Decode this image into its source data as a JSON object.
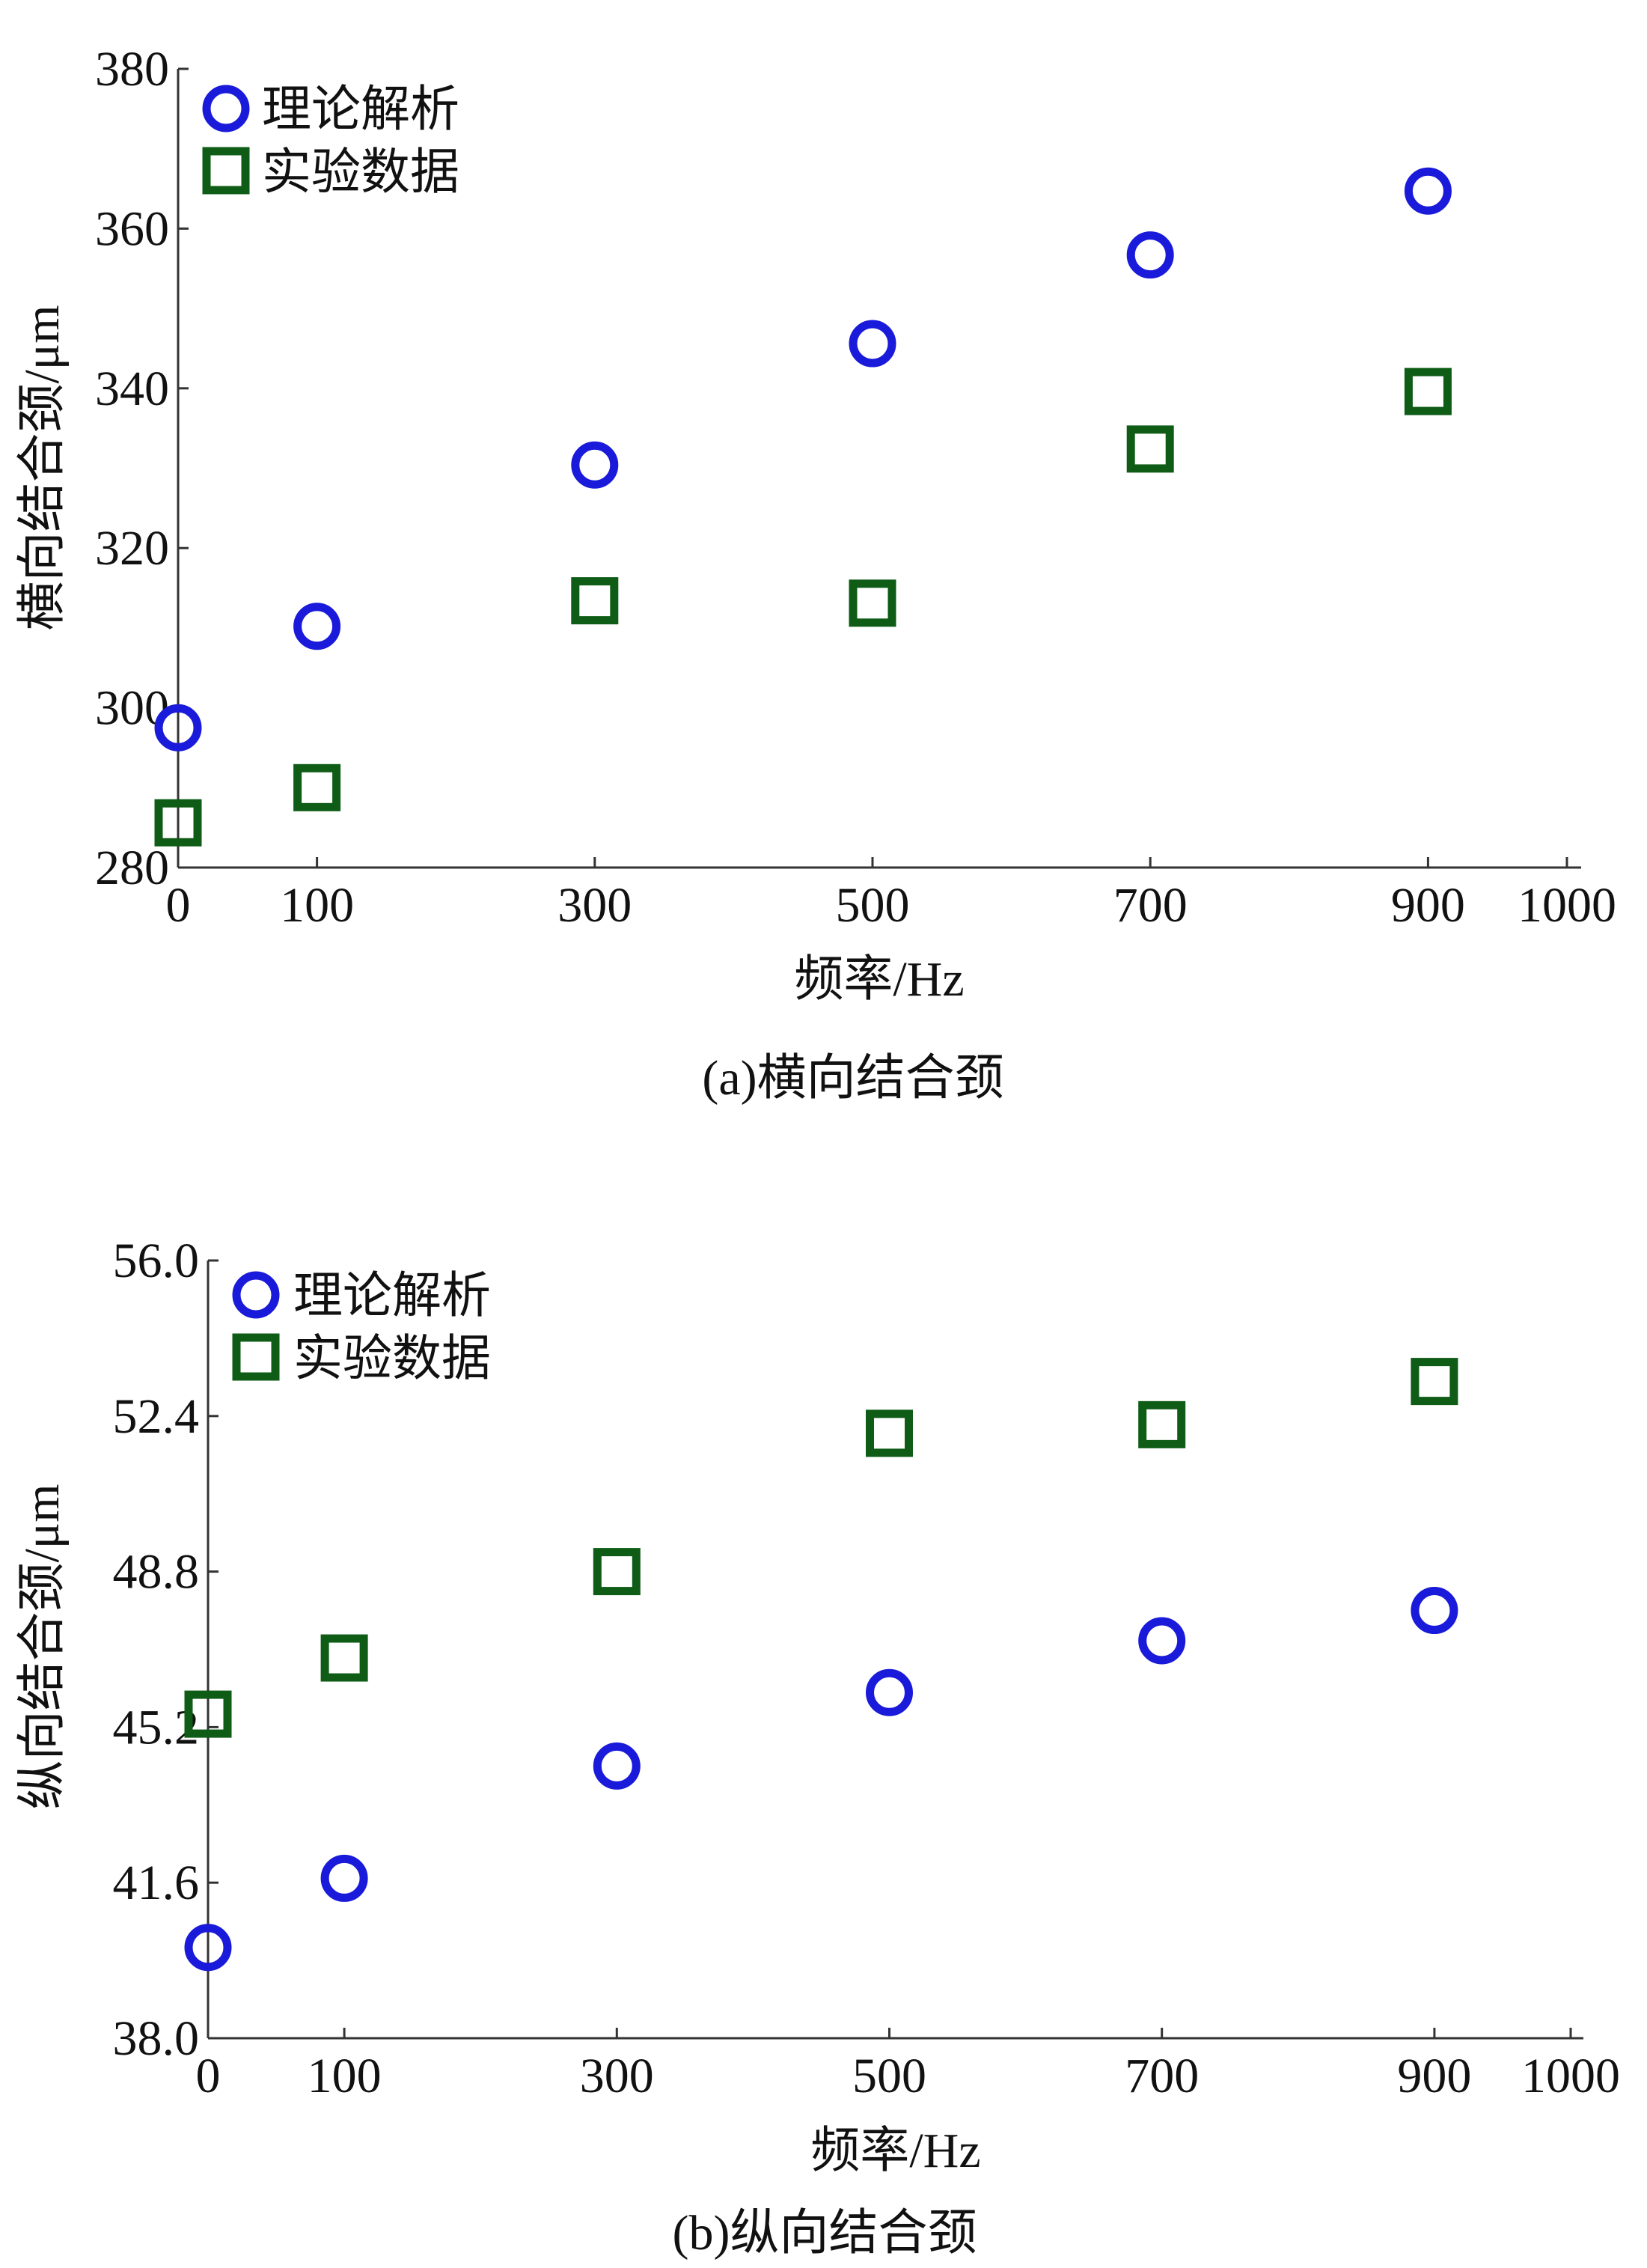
{
  "chart_data": [
    {
      "type": "scatter",
      "caption": "(a)横向结合颈",
      "xlabel": "频率/Hz",
      "ylabel": "横向结合颈/μm",
      "xlim": [
        0,
        1000
      ],
      "ylim": [
        280,
        380
      ],
      "xticks": [
        0,
        100,
        300,
        500,
        700,
        900,
        1000
      ],
      "xtick_labels": [
        "0",
        "100",
        "300",
        "500",
        "700",
        "900",
        "1000"
      ],
      "yticks": [
        280,
        300,
        320,
        340,
        360,
        380
      ],
      "ytick_labels": [
        "280",
        "300",
        "320",
        "340",
        "360",
        "380"
      ],
      "grid": false,
      "legend_position": "top-left",
      "series": [
        {
          "name": "理论解析",
          "marker": "circle",
          "color": "#1a1adb",
          "x": [
            0,
            100,
            300,
            500,
            700,
            900
          ],
          "y": [
            297.5,
            310.2,
            330.4,
            345.6,
            356.7,
            364.7
          ]
        },
        {
          "name": "实验数据",
          "marker": "square",
          "color": "#0e5c16",
          "x": [
            0,
            100,
            300,
            500,
            700,
            900
          ],
          "y": [
            285.6,
            290.0,
            313.4,
            313.1,
            332.4,
            339.6
          ]
        }
      ]
    },
    {
      "type": "scatter",
      "caption": "(b)纵向结合颈",
      "xlabel": "频率/Hz",
      "ylabel": "纵向结合颈/μm",
      "xlim": [
        0,
        1000
      ],
      "ylim": [
        38.0,
        56.0
      ],
      "xticks": [
        0,
        100,
        300,
        500,
        700,
        900,
        1000
      ],
      "xtick_labels": [
        "0",
        "100",
        "300",
        "500",
        "700",
        "900",
        "1000"
      ],
      "yticks": [
        38.0,
        41.6,
        45.2,
        48.8,
        52.4,
        56.0
      ],
      "ytick_labels": [
        "38.0",
        "41.6",
        "45.2",
        "48.8",
        "52.4",
        "56.0"
      ],
      "grid": false,
      "legend_position": "top-left",
      "series": [
        {
          "name": "理论解析",
          "marker": "circle",
          "color": "#1a1adb",
          "x": [
            0,
            100,
            300,
            500,
            700,
            900
          ],
          "y": [
            40.1,
            41.7,
            44.3,
            46.0,
            47.2,
            47.9
          ]
        },
        {
          "name": "实验数据",
          "marker": "square",
          "color": "#0e5c16",
          "x": [
            0,
            100,
            300,
            500,
            700,
            900
          ],
          "y": [
            45.5,
            46.8,
            48.8,
            52.0,
            52.2,
            53.2
          ]
        }
      ]
    }
  ]
}
